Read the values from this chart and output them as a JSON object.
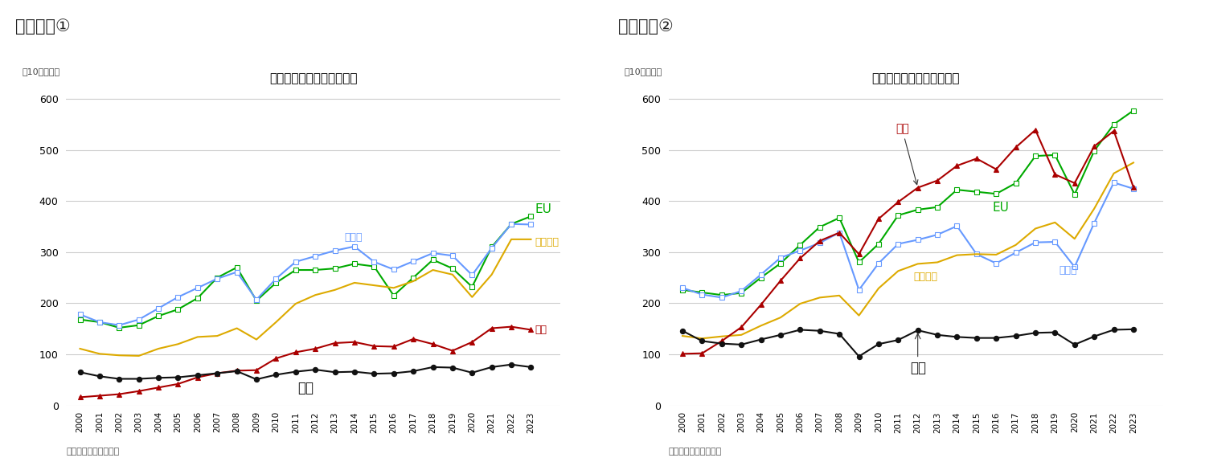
{
  "years": [
    2000,
    2001,
    2002,
    2003,
    2004,
    2005,
    2006,
    2007,
    2008,
    2009,
    2010,
    2011,
    2012,
    2013,
    2014,
    2015,
    2016,
    2017,
    2018,
    2019,
    2020,
    2021,
    2022,
    2023
  ],
  "chart1": {
    "title": "米国の地域別輸出額の推移",
    "suptitle": "図表５－①",
    "ylabel": "（10億ドル）",
    "footer": "（資料）米センリス局",
    "series": {
      "EU": {
        "color": "#00aa00",
        "marker": "s",
        "markerfacecolor": "white",
        "markeredgecolor": "#00aa00",
        "values": [
          168,
          163,
          152,
          157,
          175,
          188,
          210,
          250,
          270,
          205,
          240,
          265,
          265,
          268,
          277,
          272,
          215,
          250,
          285,
          268,
          232,
          310,
          355,
          370
        ]
      },
      "カナダ": {
        "color": "#6699ff",
        "marker": "s",
        "markerfacecolor": "white",
        "markeredgecolor": "#6699ff",
        "values": [
          178,
          163,
          157,
          168,
          190,
          212,
          230,
          248,
          261,
          207,
          248,
          281,
          292,
          303,
          311,
          281,
          266,
          282,
          298,
          293,
          255,
          308,
          355,
          354
        ]
      },
      "メキシコ": {
        "color": "#ddaa00",
        "marker": null,
        "markerfacecolor": null,
        "markeredgecolor": null,
        "values": [
          111,
          101,
          98,
          97,
          111,
          120,
          134,
          136,
          151,
          129,
          163,
          199,
          216,
          226,
          240,
          235,
          230,
          243,
          265,
          256,
          212,
          256,
          325,
          325
        ]
      },
      "中国": {
        "color": "#aa0000",
        "marker": "^",
        "markerfacecolor": "#aa0000",
        "markeredgecolor": "#aa0000",
        "values": [
          16,
          19,
          22,
          28,
          35,
          42,
          55,
          63,
          68,
          69,
          92,
          104,
          111,
          122,
          124,
          116,
          115,
          130,
          120,
          107,
          124,
          151,
          154,
          148
        ]
      },
      "日本": {
        "color": "#111111",
        "marker": "o",
        "markerfacecolor": "#111111",
        "markeredgecolor": "#111111",
        "values": [
          65,
          57,
          52,
          52,
          54,
          55,
          59,
          63,
          67,
          51,
          60,
          66,
          70,
          65,
          66,
          62,
          63,
          67,
          75,
          74,
          64,
          75,
          80,
          75
        ]
      }
    }
  },
  "chart2": {
    "title": "米国の地域別輸入額の推移",
    "suptitle": "図表５－②",
    "ylabel": "（10億ドル）",
    "footer": "（資料）米センリス局",
    "series": {
      "EU": {
        "color": "#00aa00",
        "marker": "s",
        "markerfacecolor": "white",
        "markeredgecolor": "#00aa00",
        "values": [
          226,
          221,
          216,
          220,
          250,
          278,
          314,
          349,
          367,
          280,
          316,
          372,
          383,
          388,
          422,
          418,
          414,
          435,
          488,
          490,
          413,
          498,
          550,
          577
        ]
      },
      "カナダ": {
        "color": "#6699ff",
        "marker": "s",
        "markerfacecolor": "white",
        "markeredgecolor": "#6699ff",
        "values": [
          230,
          217,
          211,
          224,
          256,
          289,
          303,
          318,
          338,
          226,
          278,
          316,
          324,
          334,
          351,
          296,
          278,
          299,
          319,
          320,
          271,
          357,
          436,
          424
        ]
      },
      "メキシコ": {
        "color": "#ddaa00",
        "marker": null,
        "markerfacecolor": null,
        "markeredgecolor": null,
        "values": [
          136,
          131,
          135,
          138,
          156,
          172,
          199,
          211,
          215,
          176,
          229,
          263,
          277,
          280,
          294,
          296,
          295,
          314,
          346,
          358,
          326,
          385,
          454,
          475
        ]
      },
      "中国": {
        "color": "#aa0000",
        "marker": "^",
        "markerfacecolor": "#aa0000",
        "markeredgecolor": "#aa0000",
        "values": [
          101,
          102,
          126,
          153,
          197,
          244,
          288,
          322,
          338,
          296,
          365,
          398,
          426,
          440,
          469,
          483,
          462,
          505,
          539,
          452,
          435,
          507,
          537,
          427
        ]
      },
      "日本": {
        "color": "#111111",
        "marker": "o",
        "markerfacecolor": "#111111",
        "markeredgecolor": "#111111",
        "values": [
          146,
          126,
          121,
          119,
          129,
          138,
          148,
          146,
          140,
          96,
          120,
          128,
          147,
          138,
          134,
          132,
          132,
          136,
          142,
          143,
          119,
          135,
          148,
          149
        ]
      }
    }
  },
  "ylim": [
    0,
    620
  ],
  "yticks": [
    0,
    100,
    200,
    300,
    400,
    500,
    600
  ],
  "bg_color": "#ffffff",
  "grid_color": "#cccccc"
}
